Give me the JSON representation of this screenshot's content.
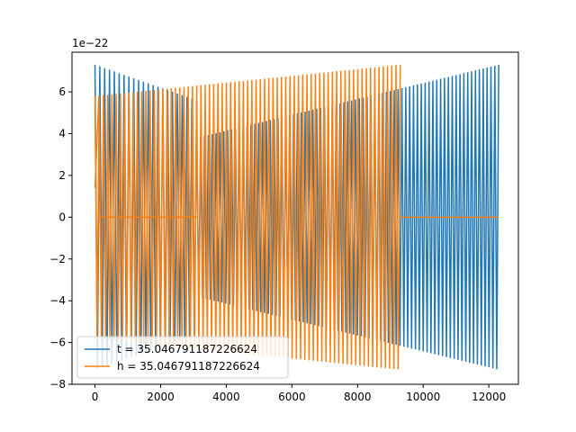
{
  "chart_data": {
    "type": "line",
    "title": "",
    "xlabel": "",
    "ylabel": "",
    "xlim": [
      -700,
      12900
    ],
    "ylim": [
      -8,
      7.9
    ],
    "y_offset_label": "1e−22",
    "x_ticks": [
      0,
      2000,
      4000,
      6000,
      8000,
      10000,
      12000
    ],
    "x_tick_labels": [
      "0",
      "2000",
      "4000",
      "6000",
      "8000",
      "10000",
      "12000"
    ],
    "y_ticks": [
      -8,
      -6,
      -4,
      -2,
      0,
      2,
      4,
      6
    ],
    "y_tick_labels": [
      "−8",
      "−6",
      "−4",
      "−2",
      "0",
      "2",
      "4",
      "6"
    ],
    "grid": false,
    "legend_position": "lower-left",
    "series": [
      {
        "name": "t = 35.046791187226624",
        "color": "#1f77b4",
        "segments": [
          {
            "x_start": 0,
            "x_end": 3100,
            "amp_start": 7.3,
            "amp_end": 5.6,
            "cycles": 21
          },
          {
            "x_start": 3100,
            "x_end": 12300,
            "amp_start": 3.8,
            "amp_end": 7.3,
            "cycles": 78
          }
        ]
      },
      {
        "name": "h = 35.046791187226624",
        "color": "#ff7f0e",
        "segments": [
          {
            "x_start": 0,
            "x_end": 120,
            "amp_start": 1.4,
            "amp_end": 5.8,
            "cycles": 1
          },
          {
            "x_start": 120,
            "x_end": 3100,
            "amp_start": 0,
            "amp_end": 0,
            "cycles": 0
          },
          {
            "x_start": 0,
            "x_end": 9300,
            "amp_start": 5.8,
            "amp_end": 7.3,
            "cycles": 72
          },
          {
            "x_start": 9300,
            "x_end": 12300,
            "amp_start": 0,
            "amp_end": 0,
            "cycles": 0
          }
        ]
      }
    ]
  }
}
